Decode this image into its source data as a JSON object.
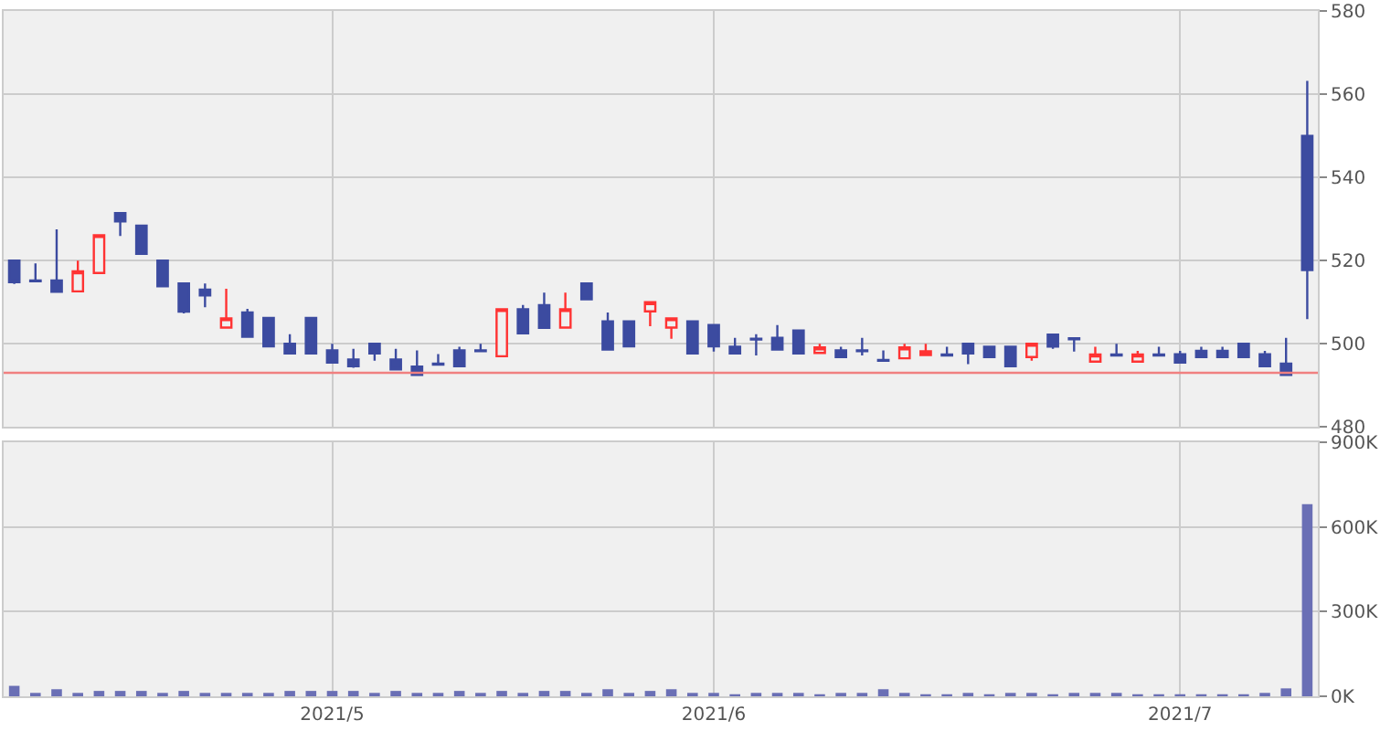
{
  "chart_data": [
    {
      "type": "candlestick",
      "categories": [
        null,
        null,
        null,
        null,
        null,
        null,
        null,
        null,
        null,
        null,
        null,
        null,
        null,
        null,
        null,
        "2021/5",
        null,
        null,
        null,
        null,
        null,
        null,
        null,
        null,
        null,
        null,
        null,
        null,
        null,
        null,
        null,
        null,
        null,
        "2021/6",
        null,
        null,
        null,
        null,
        null,
        null,
        null,
        null,
        null,
        null,
        null,
        null,
        null,
        null,
        null,
        null,
        null,
        null,
        null,
        null,
        null,
        "2021/7",
        null,
        null,
        null,
        null,
        null,
        null
      ],
      "ohlc": [
        [
          520,
          520,
          514.4,
          514.8
        ],
        [
          515.2,
          519.3,
          515,
          515
        ],
        [
          515.2,
          527.5,
          512.5,
          512.5
        ],
        [
          512.6,
          520,
          512.6,
          517.4
        ],
        [
          517,
          526.1,
          517,
          526.1
        ],
        [
          531.4,
          531.4,
          525.9,
          529.4
        ],
        [
          528.4,
          528.4,
          521.6,
          521.6
        ],
        [
          520,
          520,
          513.8,
          513.8
        ],
        [
          514.5,
          514.5,
          507.3,
          507.7
        ],
        [
          513,
          514.5,
          508.8,
          511.6
        ],
        [
          503.9,
          513.2,
          503.9,
          506.1
        ],
        [
          507.5,
          508.4,
          501.7,
          501.7
        ],
        [
          506.2,
          506.2,
          499.4,
          499.4
        ],
        [
          500,
          502.3,
          497.7,
          497.7
        ],
        [
          506.2,
          506.2,
          497.7,
          497.7
        ],
        [
          498.4,
          500,
          495.5,
          495.5
        ],
        [
          496.2,
          498.8,
          494.2,
          494.6
        ],
        [
          500,
          500,
          495.9,
          497.7
        ],
        [
          496.2,
          498.8,
          493.8,
          493.8
        ],
        [
          494.5,
          498.4,
          492.5,
          492.5
        ],
        [
          495.2,
          497.5,
          495,
          495
        ],
        [
          498.4,
          499.3,
          494.6,
          494.6
        ],
        [
          498.4,
          500,
          498.2,
          498.2
        ],
        [
          497,
          508.3,
          497,
          508.3
        ],
        [
          508.3,
          509.3,
          502.5,
          502.5
        ],
        [
          509.3,
          512.3,
          503.8,
          503.8
        ],
        [
          503.9,
          512.3,
          503.9,
          508.3
        ],
        [
          514.5,
          514.5,
          510.7,
          510.7
        ],
        [
          505.4,
          507.5,
          498.6,
          498.6
        ],
        [
          505.4,
          505.4,
          499.4,
          499.4
        ],
        [
          507.8,
          510,
          504.2,
          510
        ],
        [
          503.9,
          506.1,
          501.2,
          506.1
        ],
        [
          505.4,
          505.4,
          497.7,
          497.7
        ],
        [
          504.5,
          504.5,
          498.1,
          499.4
        ],
        [
          499.3,
          501.4,
          497.7,
          497.7
        ],
        [
          501.2,
          502.3,
          497.2,
          501
        ],
        [
          501.4,
          504.5,
          498.6,
          498.6
        ],
        [
          503.2,
          503.2,
          497.7,
          497.7
        ],
        [
          497.8,
          500,
          497.8,
          499.1
        ],
        [
          498.4,
          499.3,
          496.8,
          496.8
        ],
        [
          498.4,
          501.4,
          497.2,
          498.2
        ],
        [
          496.1,
          498.4,
          495.9,
          495.9
        ],
        [
          496.5,
          500,
          496.5,
          499.1
        ],
        [
          497.3,
          500,
          497.3,
          498.2
        ],
        [
          497.4,
          499.3,
          497.2,
          497.2
        ],
        [
          500,
          500,
          495.1,
          497.7
        ],
        [
          499.3,
          499.3,
          496.8,
          496.8
        ],
        [
          499.3,
          499.3,
          494.6,
          494.6
        ],
        [
          496.8,
          500,
          495.9,
          500
        ],
        [
          502.2,
          502.2,
          498.8,
          499.3
        ],
        [
          501.3,
          501.3,
          498.1,
          501.1
        ],
        [
          495.7,
          499.3,
          495.7,
          497.4
        ],
        [
          497.4,
          500,
          497.2,
          497.2
        ],
        [
          495.7,
          498.3,
          495.7,
          497.4
        ],
        [
          497.4,
          499.3,
          497.2,
          497.2
        ],
        [
          497.5,
          498.3,
          495.5,
          495.5
        ],
        [
          498.3,
          499.3,
          496.8,
          496.8
        ],
        [
          498.3,
          499.3,
          496.8,
          496.8
        ],
        [
          500,
          500,
          496.8,
          496.8
        ],
        [
          497.5,
          498.3,
          494.6,
          494.6
        ],
        [
          495.2,
          501.4,
          492.5,
          492.5
        ],
        [
          550,
          563.2,
          505.9,
          517.7
        ]
      ],
      "colors": [
        "#3c4ba0",
        "#3c4ba0",
        "#3c4ba0",
        "#ff3333",
        "#ff3333",
        "#3c4ba0",
        "#3c4ba0",
        "#3c4ba0",
        "#3c4ba0",
        "#3c4ba0",
        "#ff3333",
        "#3c4ba0",
        "#3c4ba0",
        "#3c4ba0",
        "#3c4ba0",
        "#3c4ba0",
        "#3c4ba0",
        "#3c4ba0",
        "#3c4ba0",
        "#3c4ba0",
        "#3c4ba0",
        "#3c4ba0",
        "#3c4ba0",
        "#ff3333",
        "#3c4ba0",
        "#3c4ba0",
        "#ff3333",
        "#3c4ba0",
        "#3c4ba0",
        "#3c4ba0",
        "#ff3333",
        "#ff3333",
        "#3c4ba0",
        "#3c4ba0",
        "#3c4ba0",
        "#3c4ba0",
        "#3c4ba0",
        "#3c4ba0",
        "#ff3333",
        "#3c4ba0",
        "#3c4ba0",
        "#3c4ba0",
        "#ff3333",
        "#ff3333",
        "#3c4ba0",
        "#3c4ba0",
        "#3c4ba0",
        "#3c4ba0",
        "#ff3333",
        "#3c4ba0",
        "#3c4ba0",
        "#ff3333",
        "#3c4ba0",
        "#ff3333",
        "#3c4ba0",
        "#3c4ba0",
        "#3c4ba0",
        "#3c4ba0",
        "#3c4ba0",
        "#3c4ba0",
        "#3c4ba0",
        "#3c4ba0"
      ],
      "ylim": [
        480,
        580
      ],
      "yticks": [
        480,
        500,
        520,
        540,
        560,
        580
      ],
      "ref_lines": [
        {
          "axis": "y",
          "value": 493,
          "color": "#f08080"
        }
      ],
      "grid": true,
      "tick_labels": "y"
    },
    {
      "type": "bar",
      "categories": [
        null,
        null,
        null,
        null,
        null,
        null,
        null,
        null,
        null,
        null,
        null,
        null,
        null,
        null,
        null,
        "2021/5",
        null,
        null,
        null,
        null,
        null,
        null,
        null,
        null,
        null,
        null,
        null,
        null,
        null,
        null,
        null,
        null,
        null,
        "2021/6",
        null,
        null,
        null,
        null,
        null,
        null,
        null,
        null,
        null,
        null,
        null,
        null,
        null,
        null,
        null,
        null,
        null,
        null,
        null,
        null,
        null,
        "2021/7",
        null,
        null,
        null,
        null,
        null,
        null
      ],
      "values": [
        37000,
        12000,
        25000,
        12000,
        19000,
        19000,
        19000,
        12000,
        19000,
        12000,
        12000,
        12000,
        12000,
        19000,
        19000,
        19000,
        19000,
        12000,
        19000,
        12000,
        12000,
        19000,
        12000,
        19000,
        12000,
        19000,
        19000,
        12000,
        25000,
        12000,
        19000,
        25000,
        12000,
        12000,
        6000,
        12000,
        12000,
        12000,
        6000,
        12000,
        12000,
        25000,
        12000,
        6000,
        6000,
        12000,
        6000,
        12000,
        12000,
        6000,
        12000,
        12000,
        12000,
        6000,
        6000,
        6000,
        6000,
        6000,
        6000,
        12000,
        28000,
        680000
      ],
      "color": "#6a6fb5",
      "ylim": [
        0,
        900000
      ],
      "yticks": [
        {
          "value": 0,
          "label": "0K"
        },
        {
          "value": 300000,
          "label": "300K"
        },
        {
          "value": 600000,
          "label": "600K"
        },
        {
          "value": 900000,
          "label": "900K"
        }
      ],
      "grid": true
    }
  ]
}
